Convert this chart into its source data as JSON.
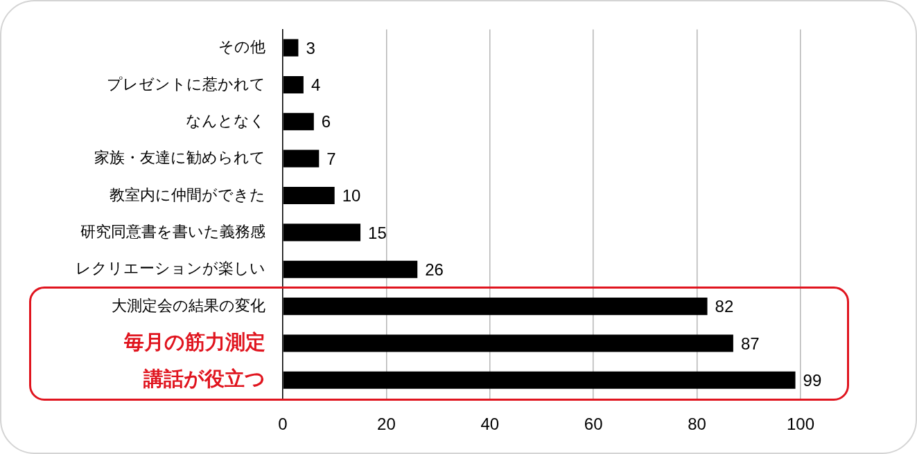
{
  "chart_data": {
    "type": "bar",
    "orientation": "horizontal",
    "categories": [
      "その他",
      "プレゼントに惹かれて",
      "なんとなく",
      "家族・友達に勧められて",
      "教室内に仲間ができた",
      "研究同意書を書いた義務感",
      "レクリエーションが楽しい",
      "大測定会の結果の変化",
      "毎月の筋力測定",
      "講話が役立つ"
    ],
    "values": [
      3,
      4,
      6,
      7,
      10,
      15,
      26,
      82,
      87,
      99
    ],
    "color": "#000000",
    "xlim": [
      0,
      100
    ],
    "xticks": [
      0,
      20,
      40,
      60,
      80,
      100
    ],
    "grid": "x",
    "data_labels": true
  }
}
